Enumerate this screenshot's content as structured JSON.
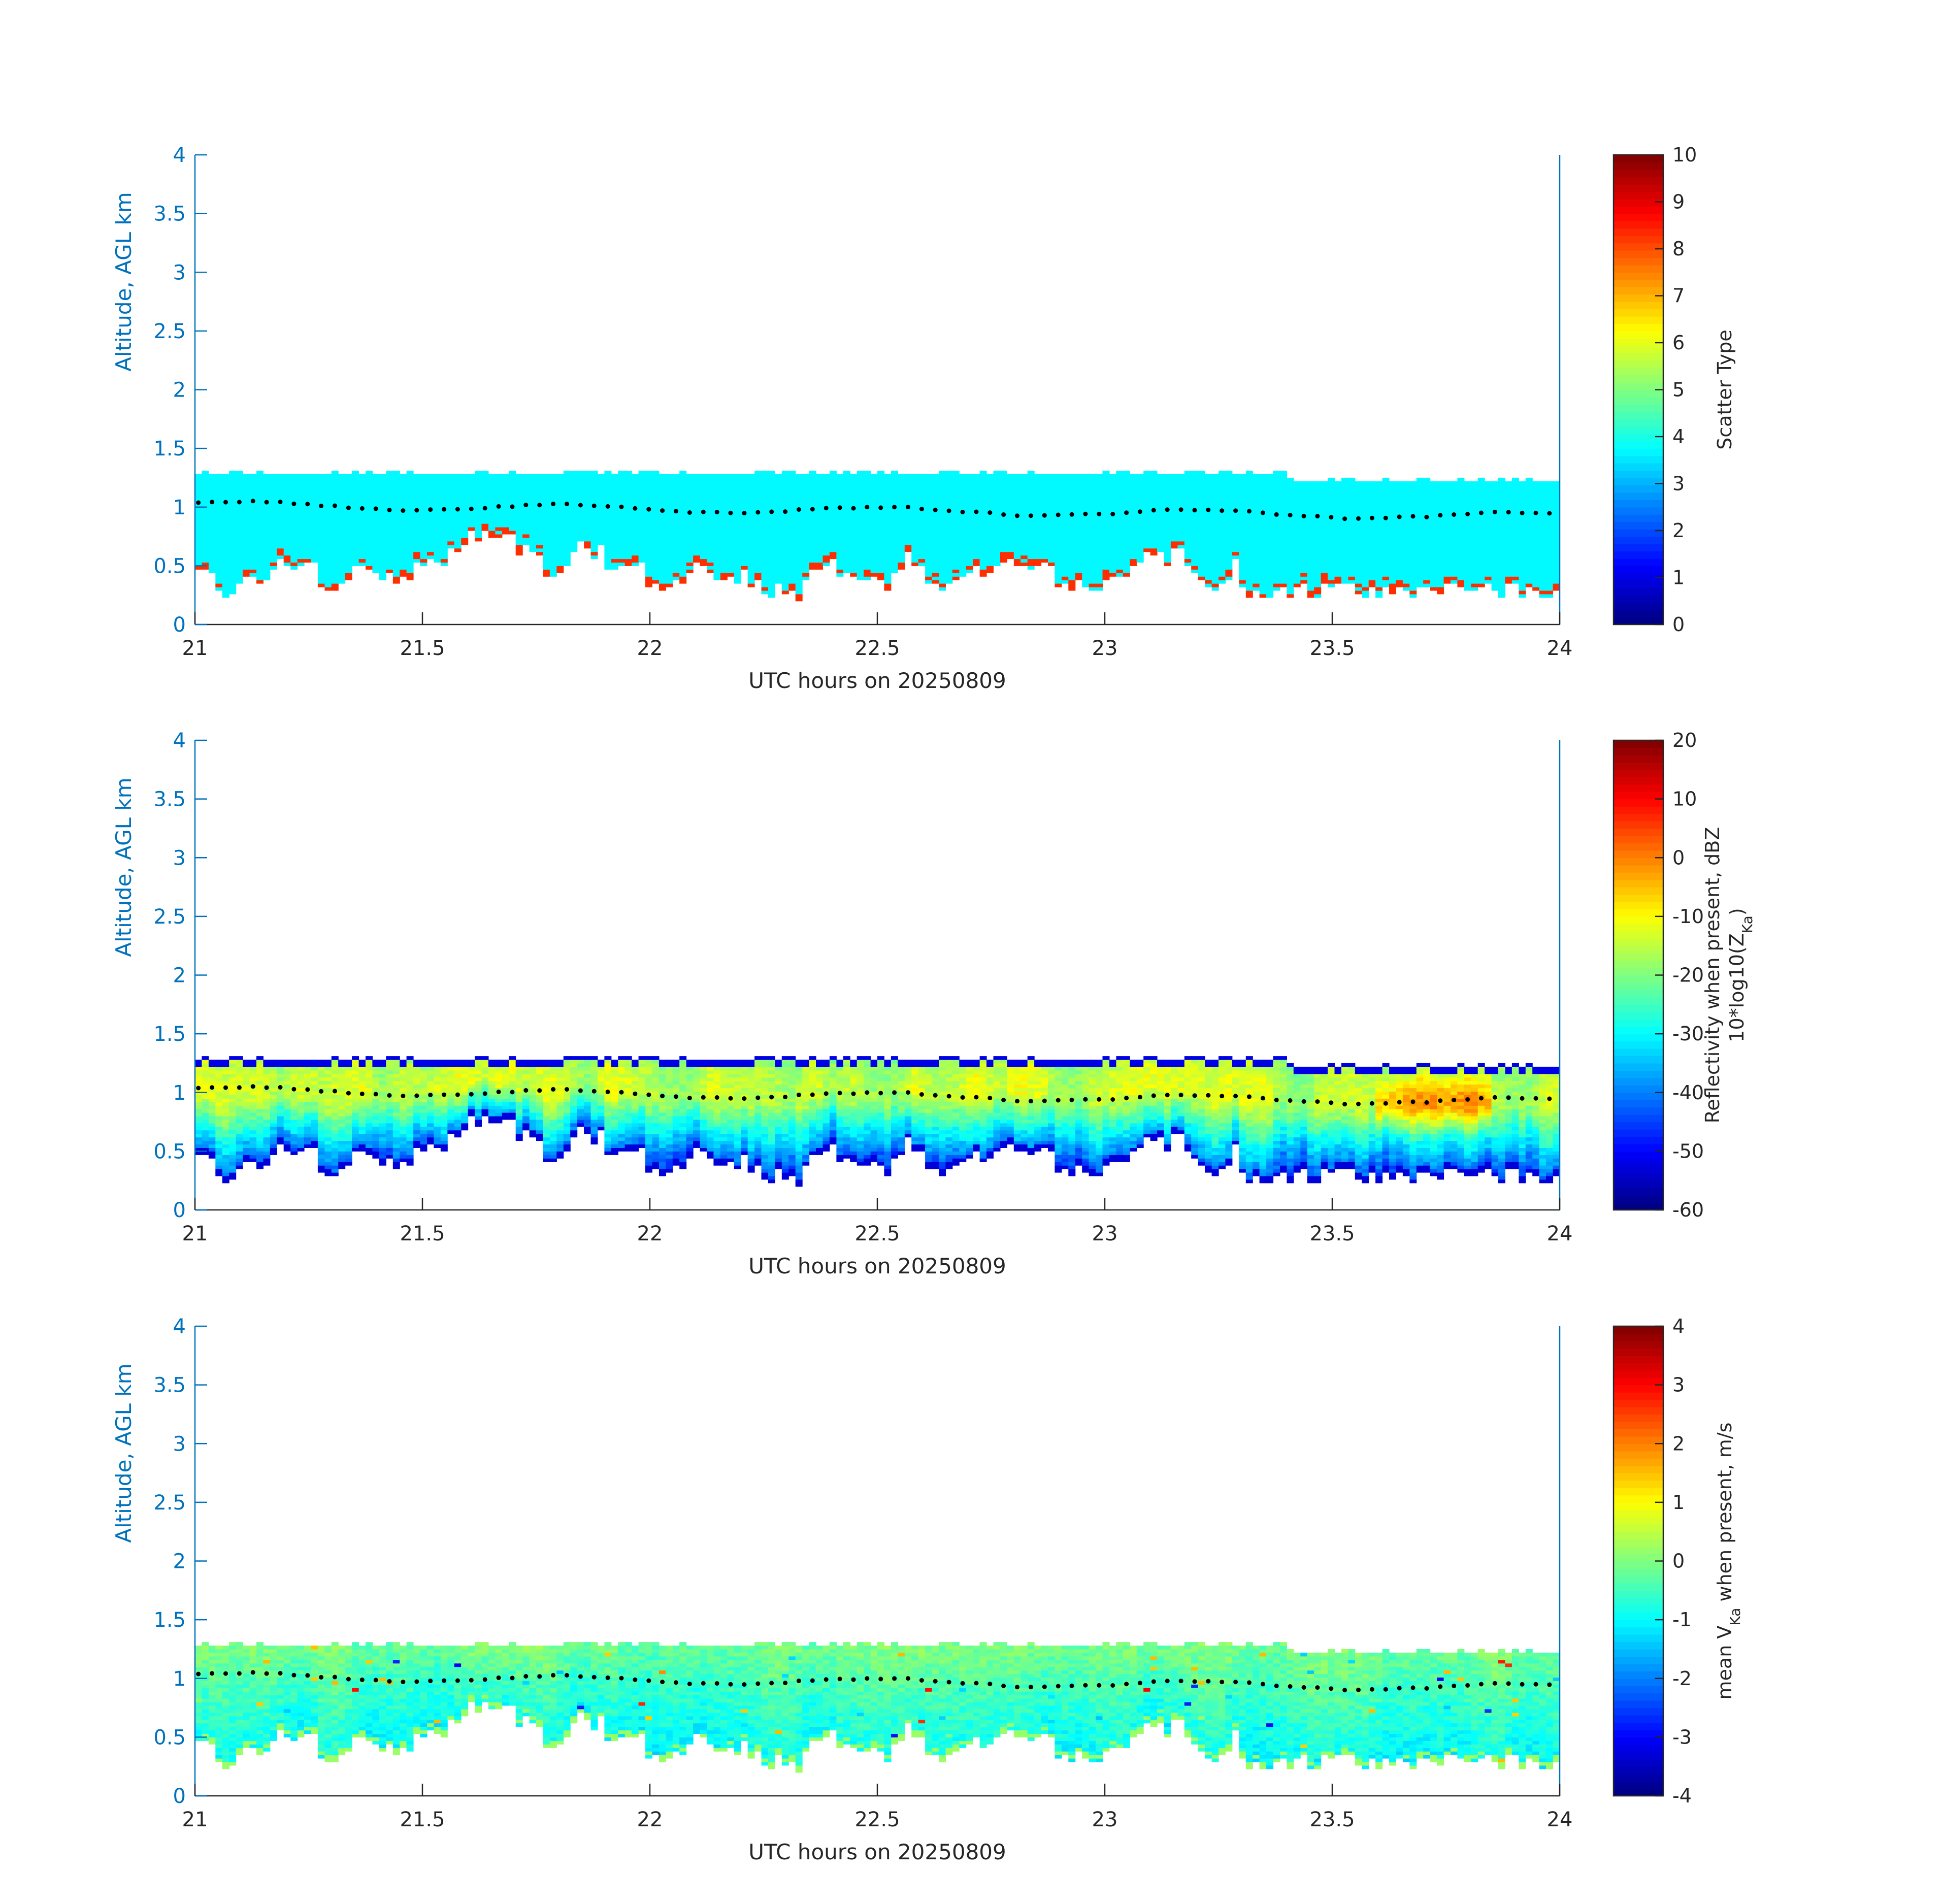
{
  "figure": {
    "panels": [
      {
        "id": "scatter-type",
        "colorbar": {
          "label_lines": [
            [
              "Scatter Type"
            ]
          ],
          "ticks": [
            0,
            1,
            2,
            3,
            4,
            5,
            6,
            7,
            8,
            9,
            10
          ],
          "range": [
            0,
            10
          ]
        }
      },
      {
        "id": "reflectivity",
        "colorbar": {
          "label_lines": [
            [
              "Reflectivity when present, dBZ"
            ],
            [
              "10*log10(Z",
              {
                "sub": "Ka"
              },
              ")"
            ]
          ],
          "ticks": [
            -60,
            -50,
            -40,
            -30,
            -20,
            -10,
            0,
            10,
            20
          ],
          "range": [
            -60,
            20
          ]
        }
      },
      {
        "id": "velocity",
        "colorbar": {
          "label_lines": [
            [
              "mean V",
              {
                "sub": "Ka"
              },
              " when present, m/s"
            ]
          ],
          "ticks": [
            -4,
            -3,
            -2,
            -1,
            0,
            1,
            2,
            3,
            4
          ],
          "range": [
            -4,
            4
          ]
        }
      }
    ]
  },
  "chart_data": [
    {
      "type": "heatmap",
      "title": "",
      "xlabel": "UTC hours on 20250809",
      "ylabel": "Altitude, AGL km",
      "xlim": [
        21,
        24
      ],
      "ylim": [
        0,
        4
      ],
      "xticks": [
        21,
        21.5,
        22,
        22.5,
        23,
        23.5,
        24
      ],
      "yticks": [
        0,
        0.5,
        1,
        1.5,
        2,
        2.5,
        3,
        3.5,
        4
      ],
      "colorbar_label": "Scatter Type",
      "clim": [
        0,
        10
      ],
      "field": "scatter_type",
      "cloud_top_km": 1.25,
      "cloud_base_km_range": [
        0.2,
        0.8
      ],
      "dominant_value": 3.7,
      "secondary_value": 8.3,
      "overlay": {
        "type": "scatter",
        "color": "#000000",
        "description": "cloud base estimate",
        "y_km_range": [
          0.85,
          1.08
        ]
      }
    },
    {
      "type": "heatmap",
      "title": "",
      "xlabel": "UTC hours on 20250809",
      "ylabel": "Altitude, AGL km",
      "xlim": [
        21,
        24
      ],
      "ylim": [
        0,
        4
      ],
      "xticks": [
        21,
        21.5,
        22,
        22.5,
        23,
        23.5,
        24
      ],
      "yticks": [
        0,
        0.5,
        1,
        1.5,
        2,
        2.5,
        3,
        3.5,
        4
      ],
      "colorbar_label": "Reflectivity when present, dBZ 10*log10(Z_Ka)",
      "clim": [
        -60,
        20
      ],
      "field": "reflectivity_dbz",
      "cloud_top_km": 1.25,
      "cloud_base_km_range": [
        0.2,
        0.8
      ],
      "value_range_observed": [
        -55,
        -5
      ],
      "overlay": {
        "type": "scatter",
        "color": "#000000",
        "y_km_range": [
          0.85,
          1.08
        ]
      }
    },
    {
      "type": "heatmap",
      "title": "",
      "xlabel": "UTC hours on 20250809",
      "ylabel": "Altitude, AGL km",
      "xlim": [
        21,
        24
      ],
      "ylim": [
        0,
        4
      ],
      "xticks": [
        21,
        21.5,
        22,
        22.5,
        23,
        23.5,
        24
      ],
      "yticks": [
        0,
        0.5,
        1,
        1.5,
        2,
        2.5,
        3,
        3.5,
        4
      ],
      "colorbar_label": "mean V_Ka when present, m/s",
      "clim": [
        -4,
        4
      ],
      "field": "mean_doppler_velocity",
      "cloud_top_km": 1.25,
      "cloud_base_km_range": [
        0.2,
        0.8
      ],
      "value_range_observed": [
        -3.5,
        3.5
      ],
      "overlay": {
        "type": "scatter",
        "color": "#000000",
        "y_km_range": [
          0.85,
          1.08
        ]
      }
    }
  ]
}
